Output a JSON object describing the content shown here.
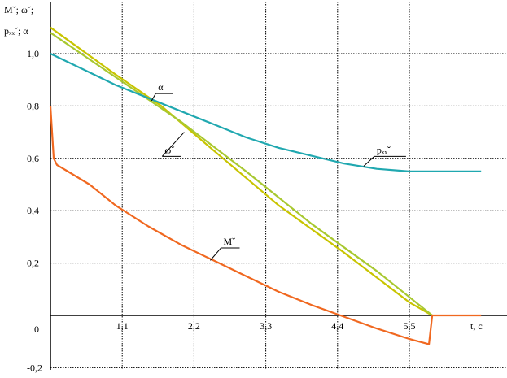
{
  "chart_data": {
    "type": "line",
    "ylabel_lines": [
      "Mˇ; ωˇ;",
      "pₓₓˇ; α"
    ],
    "xlabel": "t, c",
    "xlim": [
      0,
      6.6
    ],
    "ylim": [
      -0.2,
      1.2
    ],
    "x_ticks": [
      {
        "v": 1.1,
        "label": "1,1"
      },
      {
        "v": 2.2,
        "label": "2,2"
      },
      {
        "v": 3.3,
        "label": "3,3"
      },
      {
        "v": 4.4,
        "label": "4,4"
      },
      {
        "v": 5.5,
        "label": "5,5"
      }
    ],
    "y_ticks": [
      {
        "v": 1.0,
        "label": "1,0"
      },
      {
        "v": 0.8,
        "label": "0,8"
      },
      {
        "v": 0.6,
        "label": "0,6"
      },
      {
        "v": 0.4,
        "label": "0,4"
      },
      {
        "v": 0.2,
        "label": "0,2"
      },
      {
        "v": 0.0,
        "label": "0"
      },
      {
        "v": -0.2,
        "label": "-0,2"
      }
    ],
    "grid": true,
    "series": [
      {
        "name": "α",
        "color": "#c8c400",
        "points": [
          [
            0,
            1.1
          ],
          [
            1.0,
            0.92
          ],
          [
            1.7,
            0.8
          ],
          [
            2.5,
            0.63
          ],
          [
            3.5,
            0.42
          ],
          [
            4.5,
            0.24
          ],
          [
            5.5,
            0.05
          ],
          [
            5.85,
            0.0
          ]
        ]
      },
      {
        "name": "ωˇ",
        "color": "#a8c830",
        "points": [
          [
            0,
            1.08
          ],
          [
            1.0,
            0.91
          ],
          [
            2.0,
            0.74
          ],
          [
            3.0,
            0.55
          ],
          [
            4.0,
            0.35
          ],
          [
            5.0,
            0.17
          ],
          [
            5.85,
            0.0
          ]
        ]
      },
      {
        "name": "pₓₓˇ",
        "color": "#20a8b0",
        "points": [
          [
            0,
            1.0
          ],
          [
            0.5,
            0.94
          ],
          [
            1.0,
            0.88
          ],
          [
            1.5,
            0.83
          ],
          [
            2.0,
            0.78
          ],
          [
            2.5,
            0.73
          ],
          [
            3.0,
            0.68
          ],
          [
            3.5,
            0.64
          ],
          [
            4.0,
            0.61
          ],
          [
            4.5,
            0.58
          ],
          [
            5.0,
            0.56
          ],
          [
            5.5,
            0.55
          ],
          [
            6.0,
            0.55
          ],
          [
            6.6,
            0.55
          ]
        ]
      },
      {
        "name": "Mˇ",
        "color": "#f06820",
        "points": [
          [
            0,
            0.8
          ],
          [
            0.02,
            0.72
          ],
          [
            0.05,
            0.6
          ],
          [
            0.1,
            0.575
          ],
          [
            0.3,
            0.545
          ],
          [
            0.6,
            0.5
          ],
          [
            1.0,
            0.42
          ],
          [
            1.5,
            0.34
          ],
          [
            2.0,
            0.27
          ],
          [
            2.5,
            0.21
          ],
          [
            3.0,
            0.15
          ],
          [
            3.5,
            0.09
          ],
          [
            4.0,
            0.04
          ],
          [
            4.5,
            -0.005
          ],
          [
            5.0,
            -0.05
          ],
          [
            5.5,
            -0.09
          ],
          [
            5.8,
            -0.11
          ],
          [
            5.85,
            0.0
          ],
          [
            6.6,
            0.0
          ]
        ]
      }
    ],
    "annotations": [
      {
        "text": "α",
        "at": [
          1.65,
          0.86
        ],
        "leader_to": [
          1.55,
          0.82
        ],
        "underline": true
      },
      {
        "text": "ωˇ",
        "at": [
          1.75,
          0.62
        ],
        "leader_to": [
          2.05,
          0.7
        ],
        "underline": true
      },
      {
        "text": "pₓₓˇ",
        "at": [
          5.0,
          0.62
        ],
        "leader_to": [
          4.8,
          0.57
        ],
        "underline": true
      },
      {
        "text": "Mˇ",
        "at": [
          2.65,
          0.27
        ],
        "leader_to": [
          2.45,
          0.21
        ],
        "underline": true
      }
    ]
  }
}
